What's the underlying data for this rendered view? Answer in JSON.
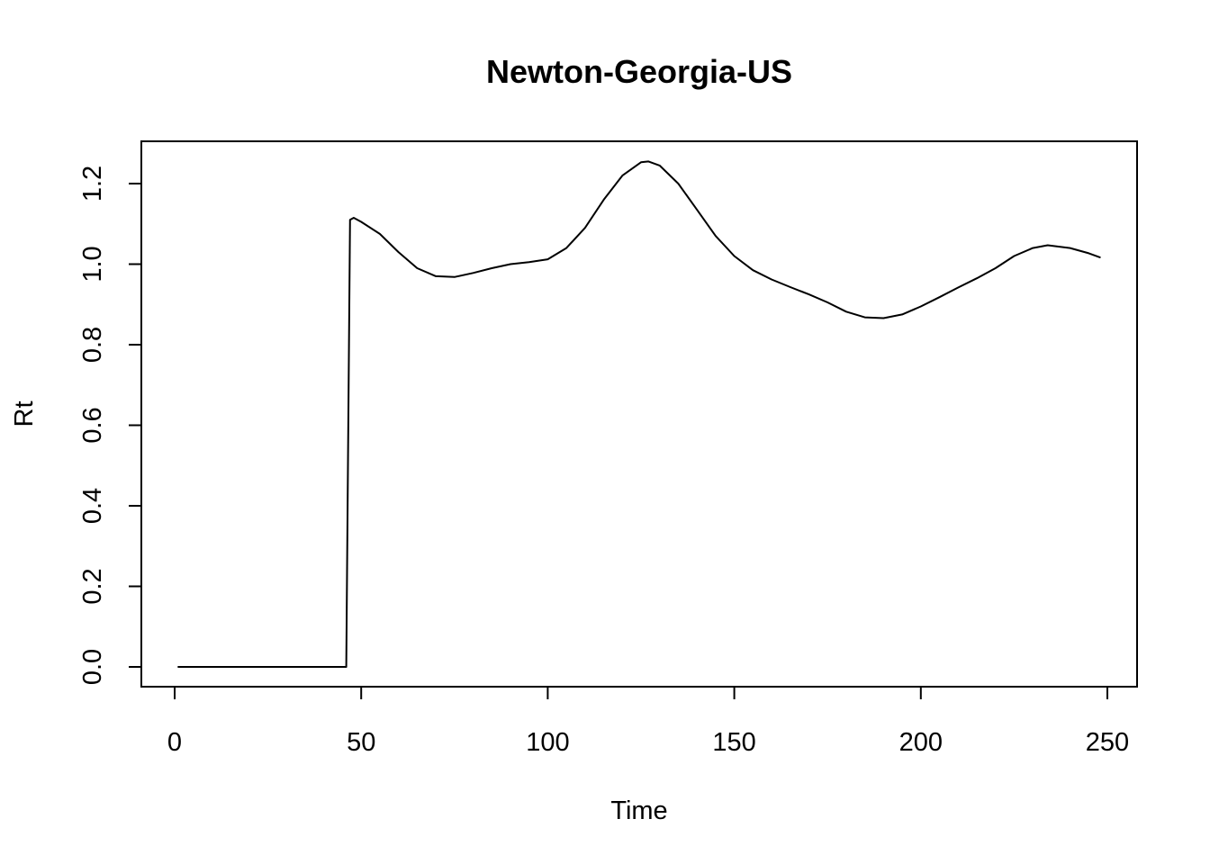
{
  "chart_data": {
    "type": "line",
    "title": "Newton-Georgia-US",
    "xlabel": "Time",
    "ylabel": "Rt",
    "xlim": [
      0,
      250
    ],
    "ylim": [
      0,
      1.2
    ],
    "x_ticks": [
      0,
      50,
      100,
      150,
      200,
      250
    ],
    "x_tick_labels": [
      "0",
      "50",
      "100",
      "150",
      "200",
      "250"
    ],
    "y_ticks": [
      0,
      0.2,
      0.4,
      0.6,
      0.8,
      1.0,
      1.2
    ],
    "y_tick_labels": [
      "0.0",
      "0.2",
      "0.4",
      "0.6",
      "0.8",
      "1.0",
      "1.2"
    ],
    "grid": false,
    "legend": "none",
    "series": [
      {
        "color": "#000000",
        "x": [
          1,
          10,
          20,
          30,
          40,
          46,
          47,
          48,
          50,
          55,
          60,
          65,
          70,
          75,
          80,
          85,
          90,
          95,
          100,
          105,
          110,
          115,
          120,
          125,
          127,
          130,
          135,
          140,
          145,
          150,
          155,
          160,
          165,
          170,
          175,
          180,
          185,
          190,
          195,
          200,
          205,
          210,
          215,
          220,
          225,
          230,
          234,
          240,
          245,
          248
        ],
        "y": [
          0.0,
          0.0,
          0.0,
          0.0,
          0.0,
          0.0,
          1.11,
          1.115,
          1.105,
          1.075,
          1.03,
          0.99,
          0.97,
          0.968,
          0.978,
          0.99,
          1.0,
          1.005,
          1.012,
          1.04,
          1.09,
          1.16,
          1.22,
          1.253,
          1.255,
          1.245,
          1.2,
          1.135,
          1.07,
          1.02,
          0.985,
          0.962,
          0.943,
          0.925,
          0.905,
          0.882,
          0.868,
          0.866,
          0.875,
          0.895,
          0.918,
          0.942,
          0.965,
          0.99,
          1.02,
          1.04,
          1.047,
          1.04,
          1.027,
          1.017
        ]
      }
    ]
  }
}
